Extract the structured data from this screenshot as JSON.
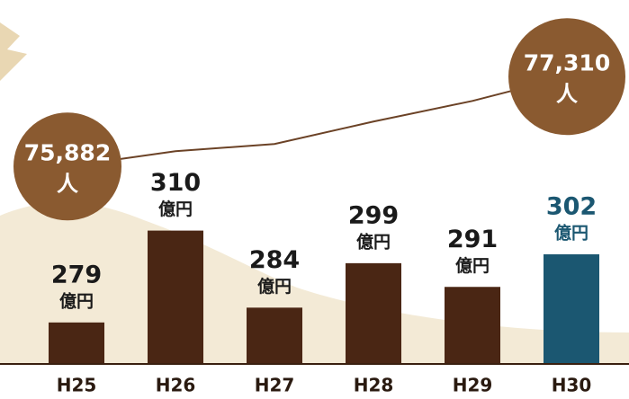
{
  "chart_data": {
    "type": "bar",
    "categories": [
      "H25",
      "H26",
      "H27",
      "H28",
      "H29",
      "H30"
    ],
    "values": [
      279,
      310,
      284,
      299,
      291,
      302
    ],
    "bar_unit": "億円",
    "colors": [
      "#4a2614",
      "#4a2614",
      "#4a2614",
      "#4a2614",
      "#4a2614",
      "#1b5771"
    ],
    "ylim": [
      265,
      312
    ],
    "line": {
      "type": "line",
      "color": "#6b4226",
      "values": [
        75882,
        76125,
        76239,
        76596,
        76924,
        77310
      ],
      "value_labels": [
        "75,882",
        null,
        null,
        null,
        null,
        "77,310"
      ],
      "unit": "人",
      "marker_color": "#8a5a30",
      "y2lim": [
        75000,
        78000
      ]
    }
  }
}
